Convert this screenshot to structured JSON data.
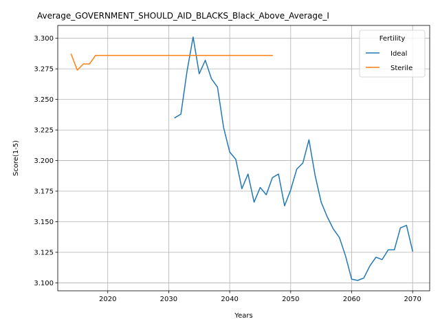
{
  "chart_data": {
    "type": "line",
    "title": "Average_GOVERNMENT_SHOULD_AID_BLACKS_Black_Above_Average_I",
    "xlabel": "Years",
    "ylabel": "Score(1-5)",
    "xlim": [
      2011.8,
      2072.8
    ],
    "ylim": [
      3.0935,
      3.3105
    ],
    "xticks": [
      2020,
      2030,
      2040,
      2050,
      2060,
      2070
    ],
    "yticks": [
      3.1,
      3.125,
      3.15,
      3.175,
      3.2,
      3.225,
      3.25,
      3.275,
      3.3
    ],
    "ytick_labels": [
      "3.100",
      "3.125",
      "3.150",
      "3.175",
      "3.200",
      "3.225",
      "3.250",
      "3.275",
      "3.300"
    ],
    "grid": true,
    "legend": {
      "title": "Fertility",
      "placement": "top-right"
    },
    "series": [
      {
        "name": "Ideal",
        "color": "#1f77b4",
        "x": [
          2031,
          2032,
          2033,
          2034,
          2035,
          2036,
          2037,
          2038,
          2039,
          2040,
          2041,
          2042,
          2043,
          2044,
          2045,
          2046,
          2047,
          2048,
          2049,
          2050,
          2051,
          2052,
          2053,
          2054,
          2055,
          2056,
          2057,
          2058,
          2059,
          2060,
          2061,
          2062,
          2063,
          2064,
          2065,
          2066,
          2067,
          2068,
          2069,
          2070
        ],
        "y": [
          3.235,
          3.238,
          3.273,
          3.301,
          3.271,
          3.282,
          3.267,
          3.26,
          3.227,
          3.207,
          3.201,
          3.177,
          3.189,
          3.166,
          3.178,
          3.172,
          3.186,
          3.189,
          3.163,
          3.176,
          3.193,
          3.198,
          3.217,
          3.188,
          3.166,
          3.154,
          3.144,
          3.137,
          3.122,
          3.103,
          3.102,
          3.104,
          3.114,
          3.121,
          3.119,
          3.127,
          3.127,
          3.145,
          3.147,
          3.126
        ]
      },
      {
        "name": "Sterile",
        "color": "#ff7f0e",
        "x": [
          2014,
          2015,
          2016,
          2017,
          2018,
          2019,
          2020,
          2021,
          2022,
          2023,
          2024,
          2025,
          2026,
          2027,
          2028,
          2029,
          2030,
          2031,
          2032,
          2033,
          2034,
          2035,
          2036,
          2037,
          2038,
          2039,
          2040,
          2041,
          2042,
          2043,
          2044,
          2045,
          2046,
          2047
        ],
        "y": [
          3.287,
          3.274,
          3.279,
          3.279,
          3.286,
          3.286,
          3.286,
          3.286,
          3.286,
          3.286,
          3.286,
          3.286,
          3.286,
          3.286,
          3.286,
          3.286,
          3.286,
          3.286,
          3.286,
          3.286,
          3.286,
          3.286,
          3.286,
          3.286,
          3.286,
          3.286,
          3.286,
          3.286,
          3.286,
          3.286,
          3.286,
          3.286,
          3.286,
          3.286
        ]
      }
    ]
  }
}
